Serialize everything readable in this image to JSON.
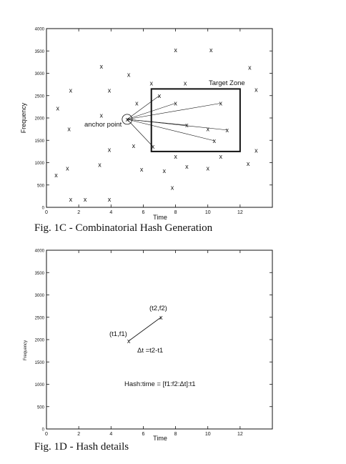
{
  "fig1c": {
    "caption": "Fig. 1C - Combinatorial Hash Generation",
    "xlabel": "Time",
    "ylabel": "Frequency",
    "xlim": [
      0,
      14
    ],
    "ylim": [
      0,
      4000
    ],
    "xticks": [
      "0",
      "2",
      "4",
      "6",
      "8",
      "10",
      "12"
    ],
    "yticks": [
      "0",
      "500",
      "1000",
      "1500",
      "2000",
      "2500",
      "3000",
      "3500",
      "4000"
    ],
    "marker": "x",
    "anchor_label": "anchor point",
    "target_label": "Target Zone",
    "anchor": [
      5.0,
      1970
    ],
    "target_zone": {
      "x": [
        6.5,
        12.0
      ],
      "y": [
        1250,
        2650
      ]
    },
    "points": [
      [
        3.4,
        3150
      ],
      [
        5.1,
        2970
      ],
      [
        8.0,
        3520
      ],
      [
        10.2,
        3520
      ],
      [
        12.6,
        3130
      ],
      [
        1.5,
        2620
      ],
      [
        3.9,
        2620
      ],
      [
        6.5,
        2780
      ],
      [
        8.6,
        2780
      ],
      [
        13.0,
        2630
      ],
      [
        0.7,
        2220
      ],
      [
        7.0,
        2500
      ],
      [
        5.6,
        2330
      ],
      [
        8.0,
        2330
      ],
      [
        10.8,
        2330
      ],
      [
        3.4,
        2060
      ],
      [
        1.4,
        1750
      ],
      [
        8.7,
        1840
      ],
      [
        10.0,
        1750
      ],
      [
        11.2,
        1730
      ],
      [
        10.4,
        1490
      ],
      [
        5.4,
        1380
      ],
      [
        6.6,
        1360
      ],
      [
        3.9,
        1290
      ],
      [
        13.0,
        1270
      ],
      [
        8.0,
        1140
      ],
      [
        10.8,
        1140
      ],
      [
        3.3,
        950
      ],
      [
        12.5,
        980
      ],
      [
        1.3,
        870
      ],
      [
        5.9,
        850
      ],
      [
        7.3,
        820
      ],
      [
        8.7,
        910
      ],
      [
        10.0,
        870
      ],
      [
        0.6,
        720
      ],
      [
        7.8,
        440
      ],
      [
        1.5,
        180
      ],
      [
        2.4,
        180
      ],
      [
        3.9,
        180
      ]
    ],
    "fan_targets": [
      [
        7.0,
        2500
      ],
      [
        8.0,
        2330
      ],
      [
        10.8,
        2330
      ],
      [
        8.7,
        1840
      ],
      [
        11.2,
        1730
      ],
      [
        10.4,
        1490
      ],
      [
        6.6,
        1360
      ]
    ]
  },
  "fig1d": {
    "caption": "Fig. 1D - Hash details",
    "xlabel": "Time",
    "ylabel": "Frequency",
    "xlim": [
      0,
      14
    ],
    "ylim": [
      0,
      4000
    ],
    "xticks": [
      "0",
      "2",
      "4",
      "6",
      "8",
      "10",
      "12"
    ],
    "yticks": [
      "0",
      "500",
      "1000",
      "1500",
      "2000",
      "2500",
      "3000",
      "3500",
      "4000"
    ],
    "marker": "x",
    "p1": [
      5.1,
      1970
    ],
    "p2": [
      7.1,
      2500
    ],
    "p1_label": "(t1,f1)",
    "p2_label": "(t2,f2)",
    "dt_label": "Δt =t2-t1",
    "hash_label": "Hash:time = [f1:f2:Δt]:t1"
  }
}
